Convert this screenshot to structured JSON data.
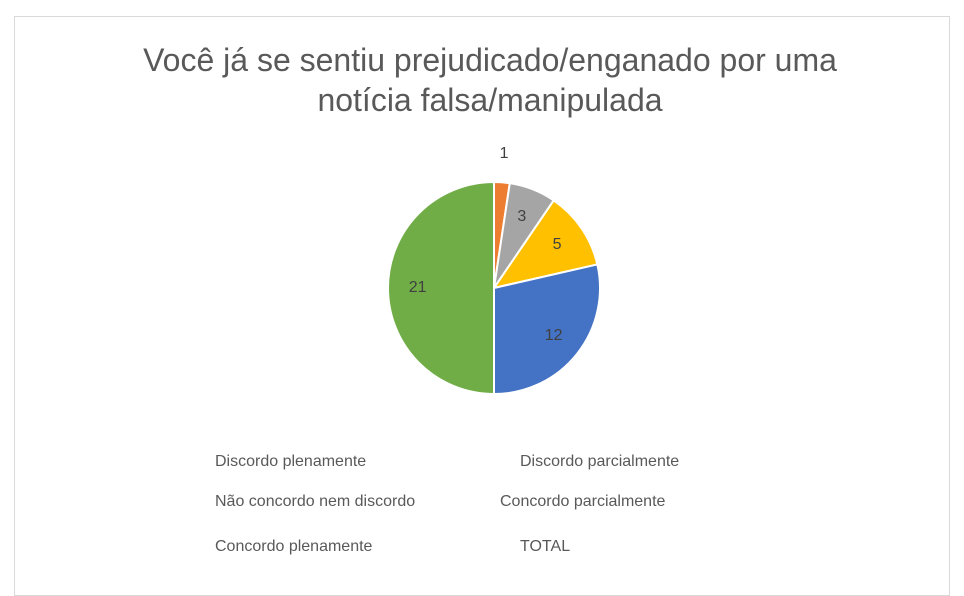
{
  "chart_data": {
    "type": "pie",
    "title": "Você já se sentiu prejudicado/enganado por uma notícia falsa/manipulada",
    "categories": [
      "Discordo plenamente",
      "Discordo parcialmente",
      "Não concordo nem discordo",
      "Concordo parcialmente",
      "Concordo plenamente",
      "TOTAL"
    ],
    "values": [
      0,
      1,
      3,
      5,
      12,
      21
    ],
    "colors": [
      "#4472c4",
      "#ed7d31",
      "#a5a5a5",
      "#ffc000",
      "#4472c4",
      "#70ad47"
    ]
  }
}
